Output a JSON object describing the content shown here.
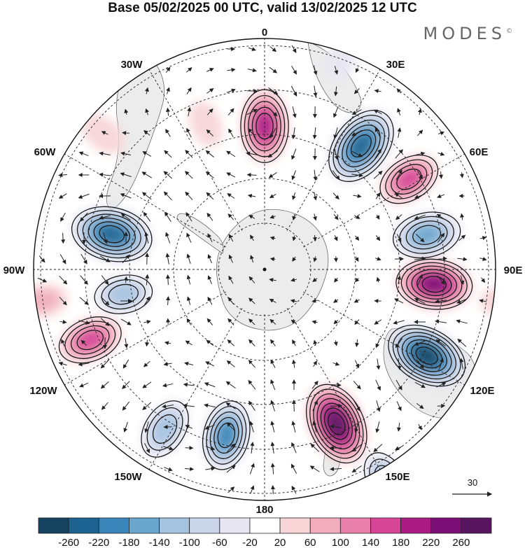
{
  "title": "Base 05/02/2025 00 UTC, valid 13/02/2025 12 UTC",
  "brand": "MODES",
  "brand_mark": "©",
  "longitude_labels": {
    "lon_0": "0",
    "lon_30e": "30E",
    "lon_60e": "60E",
    "lon_90e": "90E",
    "lon_120e": "120E",
    "lon_150e": "150E",
    "lon_180": "180",
    "lon_150w": "150W",
    "lon_120w": "120W",
    "lon_90w": "90W",
    "lon_60w": "60W",
    "lon_30w": "30W"
  },
  "reference_vector": {
    "value": "30"
  },
  "colorbar": {
    "labels": [
      "-260",
      "-220",
      "-180",
      "-140",
      "-100",
      "-60",
      "-20",
      "20",
      "60",
      "100",
      "140",
      "180",
      "220",
      "260"
    ],
    "colors": [
      "#14425f",
      "#1d6391",
      "#3985b9",
      "#6aa6cd",
      "#a4c3e0",
      "#ccd6ea",
      "#e8e6f2",
      "#ffffff",
      "#f8d6d8",
      "#f1adbd",
      "#e97fab",
      "#d74596",
      "#ac1a84",
      "#7c0f75",
      "#581660"
    ]
  },
  "colors": {
    "land": "#ededed",
    "coast": "#6a6a6a",
    "grid": "#222222",
    "arrow": "#222222"
  },
  "anomaly_fields": [
    {
      "lon": 0,
      "lat": -58,
      "value": 210
    },
    {
      "lon": 38,
      "lat": -55,
      "value": -255
    },
    {
      "lon": 58,
      "lat": -52,
      "value": 150
    },
    {
      "lon": 78,
      "lat": -53,
      "value": -180
    },
    {
      "lon": 95,
      "lat": -52,
      "value": 230
    },
    {
      "lon": 118,
      "lat": -49,
      "value": -265
    },
    {
      "lon": 155,
      "lat": -52,
      "value": 270
    },
    {
      "lon": 193,
      "lat": -52,
      "value": -190
    },
    {
      "lon": 150,
      "lat": -36,
      "value": -110
    },
    {
      "lon": 212,
      "lat": -48,
      "value": -140
    },
    {
      "lon": 283,
      "lat": -55,
      "value": -260
    },
    {
      "lon": 260,
      "lat": -58,
      "value": -120
    },
    {
      "lon": 248,
      "lat": -48,
      "value": 160
    },
    {
      "lon": 262,
      "lat": -40,
      "value": 70
    },
    {
      "lon": 338,
      "lat": -55,
      "value": 50
    },
    {
      "lon": 310,
      "lat": -43,
      "value": 60
    },
    {
      "lon": 98,
      "lat": -36,
      "value": 60
    },
    {
      "lon": 140,
      "lat": -30,
      "value": 40
    },
    {
      "lon": 20,
      "lat": -40,
      "value": -40
    }
  ]
}
